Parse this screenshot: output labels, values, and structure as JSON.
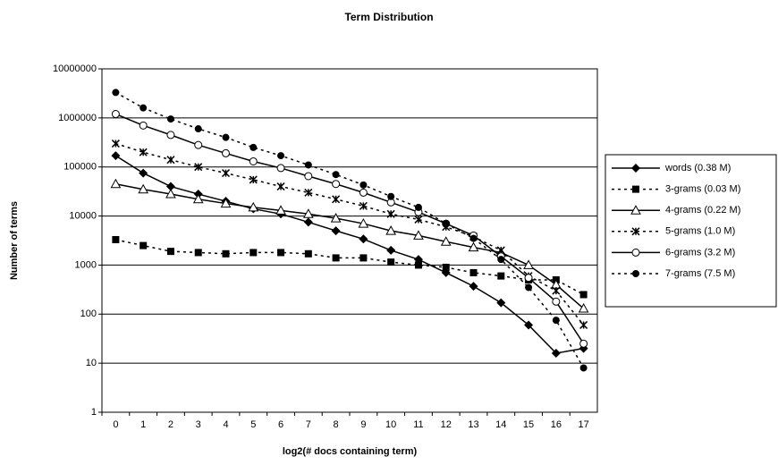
{
  "chart_data": {
    "type": "line",
    "title": "Term Distribution",
    "x_label": "log2(# docs containing term)",
    "y_label": "Number of terms",
    "categories": [
      "0",
      "1",
      "2",
      "3",
      "4",
      "5",
      "6",
      "7",
      "8",
      "9",
      "10",
      "11",
      "12",
      "13",
      "14",
      "15",
      "16",
      "17"
    ],
    "y_scale": "log",
    "ylim": [
      1,
      10000000
    ],
    "yticks": [
      1,
      10,
      100,
      1000,
      10000,
      100000,
      1000000,
      10000000
    ],
    "grid": true,
    "legend": "right",
    "series": [
      {
        "name": "words (0.38 M)",
        "color": "#000000",
        "dash": "solid",
        "marker": "diamond",
        "values": [
          170000,
          75000,
          40000,
          28000,
          20000,
          14000,
          11000,
          7500,
          5000,
          3400,
          2000,
          1300,
          700,
          370,
          170,
          60,
          16,
          20
        ]
      },
      {
        "name": "3-grams (0.03 M)",
        "color": "#000000",
        "dash": "dotted",
        "marker": "square",
        "values": [
          3300,
          2500,
          1900,
          1800,
          1700,
          1800,
          1800,
          1700,
          1400,
          1400,
          1150,
          1000,
          900,
          700,
          600,
          500,
          500,
          250
        ]
      },
      {
        "name": "4-grams (0.22 M)",
        "color": "#000000",
        "dash": "solid",
        "marker": "triangle",
        "values": [
          45000,
          35000,
          28000,
          22000,
          18000,
          15000,
          13000,
          11000,
          9000,
          7000,
          5000,
          4000,
          3000,
          2300,
          1800,
          1000,
          400,
          130
        ]
      },
      {
        "name": "5-grams (1.0 M)",
        "color": "#000000",
        "dash": "dotted",
        "marker": "star",
        "values": [
          300000,
          200000,
          140000,
          100000,
          75000,
          55000,
          40000,
          30000,
          22000,
          16000,
          11000,
          8500,
          6000,
          3800,
          2000,
          600,
          300,
          60
        ]
      },
      {
        "name": "6-grams (3.2 M)",
        "color": "#000000",
        "dash": "solid",
        "marker": "circle-open",
        "values": [
          1200000,
          700000,
          450000,
          280000,
          190000,
          130000,
          95000,
          65000,
          45000,
          30000,
          19000,
          12000,
          7000,
          4000,
          1500,
          550,
          180,
          25
        ]
      },
      {
        "name": "7-grams (7.5 M)",
        "color": "#000000",
        "dash": "dotted",
        "marker": "circle",
        "values": [
          3300000,
          1600000,
          950000,
          600000,
          400000,
          250000,
          170000,
          110000,
          70000,
          43000,
          25000,
          15000,
          7000,
          3500,
          1300,
          350,
          75,
          8
        ]
      }
    ]
  }
}
